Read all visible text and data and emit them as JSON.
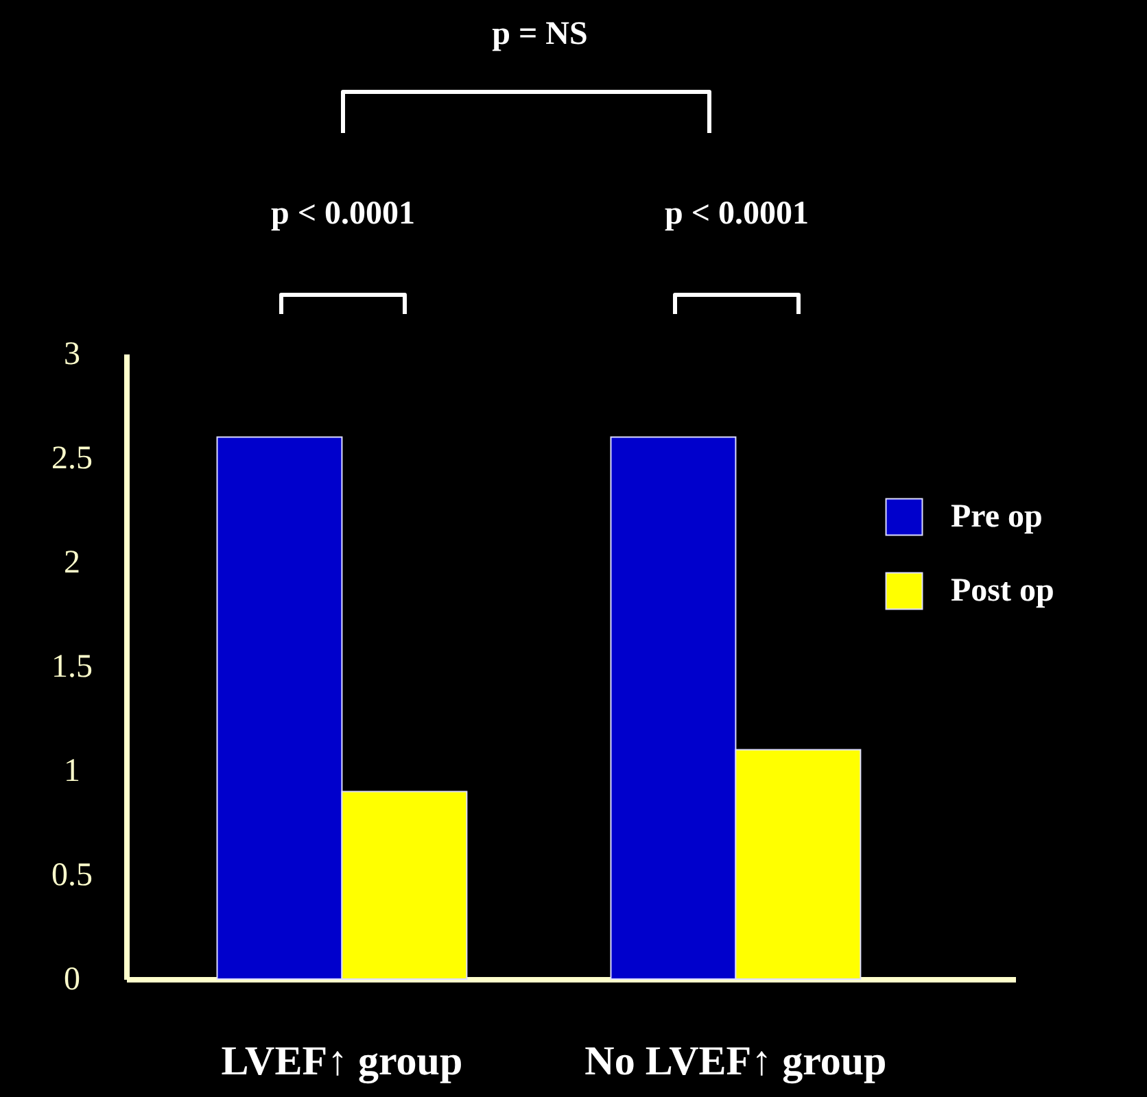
{
  "chart_data": {
    "type": "bar",
    "categories": [
      "LVEF↑ group",
      "No LVEF↑ group"
    ],
    "series": [
      {
        "name": "Pre op",
        "color": "#0000cc",
        "values": [
          2.6,
          2.6
        ]
      },
      {
        "name": "Post op",
        "color": "#ffff00",
        "values": [
          0.9,
          1.1
        ]
      }
    ],
    "ylim": [
      0,
      3
    ],
    "yticks": [
      0,
      0.5,
      1,
      1.5,
      2,
      2.5,
      3
    ],
    "legend": "right",
    "annotations": [
      "p = NS",
      "p < 0.0001",
      "p < 0.0001"
    ]
  }
}
